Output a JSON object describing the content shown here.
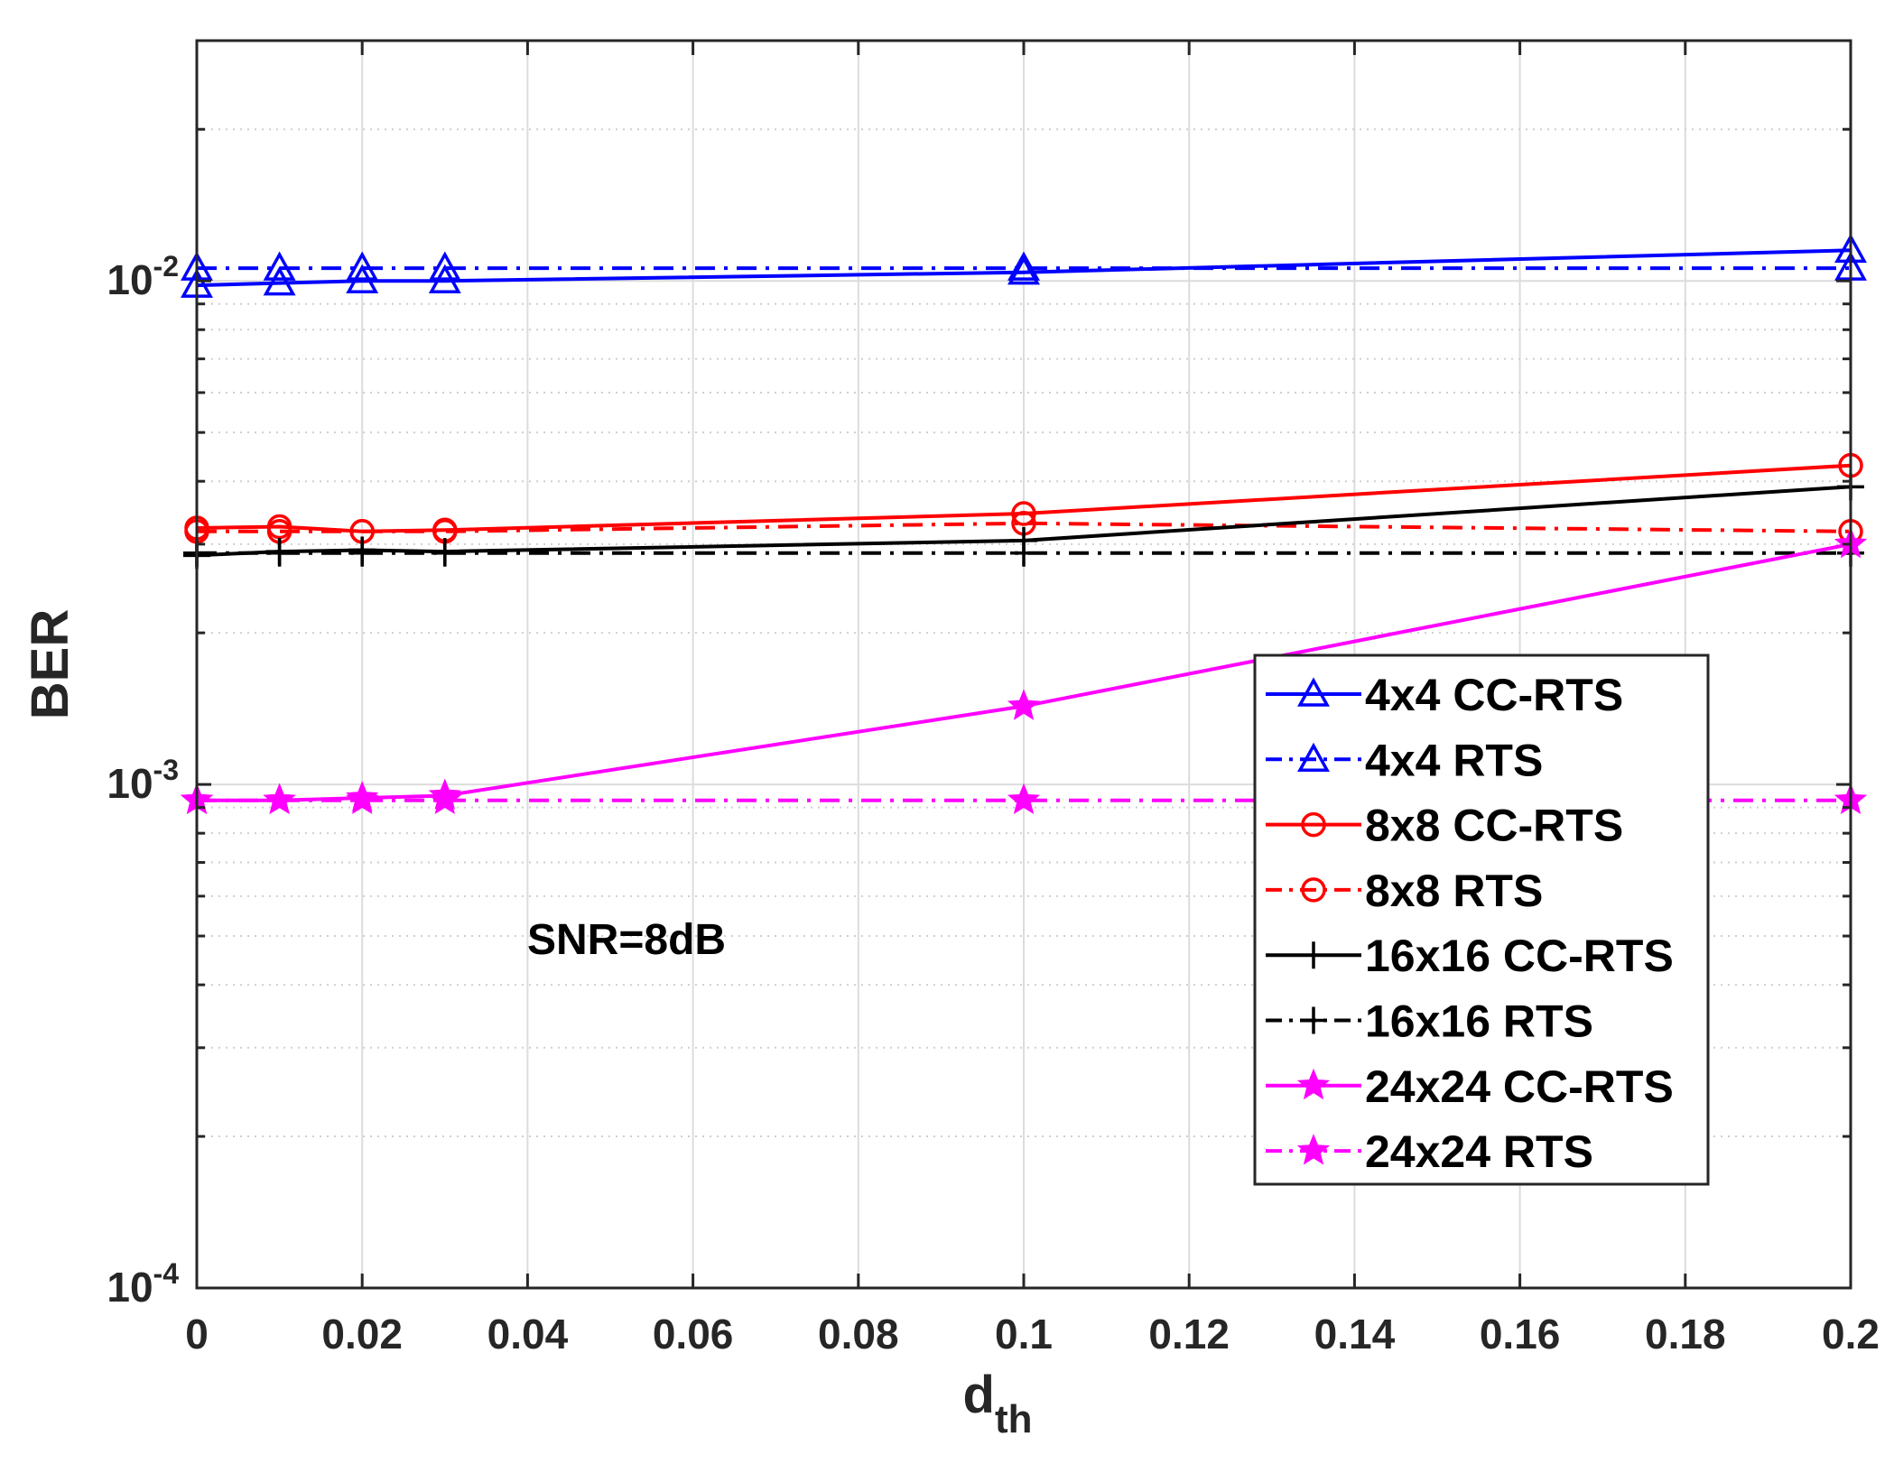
{
  "chart_data": {
    "type": "line",
    "title": "",
    "xlabel": "d",
    "xlabel_subscript": "th",
    "ylabel": "BER",
    "y_scale": "log",
    "xlim": [
      0,
      0.2
    ],
    "ylim": [
      0.0001,
      0.03
    ],
    "grid": true,
    "legend_position": "center-right",
    "x_ticks": [
      0,
      0.02,
      0.04,
      0.06,
      0.08,
      0.1,
      0.12,
      0.14,
      0.16,
      0.18,
      0.2
    ],
    "x_tick_labels": [
      "0",
      "0.02",
      "0.04",
      "0.06",
      "0.08",
      "0.1",
      "0.12",
      "0.14",
      "0.16",
      "0.18",
      "0.2"
    ],
    "y_ticks": [
      {
        "value": 0.0001,
        "base": "10",
        "exp": "-4"
      },
      {
        "value": 0.001,
        "base": "10",
        "exp": "-3"
      },
      {
        "value": 0.01,
        "base": "10",
        "exp": "-2"
      }
    ],
    "annotation": "SNR=8dB",
    "x": [
      0,
      0.01,
      0.02,
      0.03,
      0.1,
      0.2
    ],
    "series": [
      {
        "name": "4x4 CC-RTS",
        "color": "#0000ff",
        "dash": "solid",
        "marker": "triangle",
        "values": [
          0.0098,
          0.0099,
          0.01,
          0.01,
          0.0104,
          0.0115
        ]
      },
      {
        "name": "4x4 RTS",
        "color": "#0000ff",
        "dash": "dashdot",
        "marker": "triangle",
        "values": [
          0.0106,
          0.0106,
          0.0106,
          0.0106,
          0.0106,
          0.0106
        ]
      },
      {
        "name": "8x8 CC-RTS",
        "color": "#ff0000",
        "dash": "solid",
        "marker": "circle",
        "values": [
          0.00323,
          0.00325,
          0.00318,
          0.0032,
          0.00345,
          0.0043
        ]
      },
      {
        "name": "8x8 RTS",
        "color": "#ff0000",
        "dash": "dashdot",
        "marker": "circle",
        "values": [
          0.00318,
          0.00318,
          0.00318,
          0.00318,
          0.0033,
          0.00318
        ]
      },
      {
        "name": "16x16 CC-RTS",
        "color": "#000000",
        "dash": "solid",
        "marker": "plus",
        "values": [
          0.00285,
          0.0029,
          0.00292,
          0.0029,
          0.00305,
          0.0039
        ]
      },
      {
        "name": "16x16 RTS",
        "color": "#000000",
        "dash": "dashdot",
        "marker": "plus",
        "values": [
          0.00288,
          0.00288,
          0.00288,
          0.00288,
          0.00288,
          0.00288
        ]
      },
      {
        "name": "24x24 CC-RTS",
        "color": "#ff00ff",
        "dash": "solid",
        "marker": "star",
        "values": [
          0.00093,
          0.00093,
          0.00094,
          0.00095,
          0.00143,
          0.003
        ]
      },
      {
        "name": "24x24 RTS",
        "color": "#ff00ff",
        "dash": "dashdot",
        "marker": "star",
        "values": [
          0.00093,
          0.00093,
          0.00093,
          0.00093,
          0.00093,
          0.00093
        ]
      }
    ]
  }
}
